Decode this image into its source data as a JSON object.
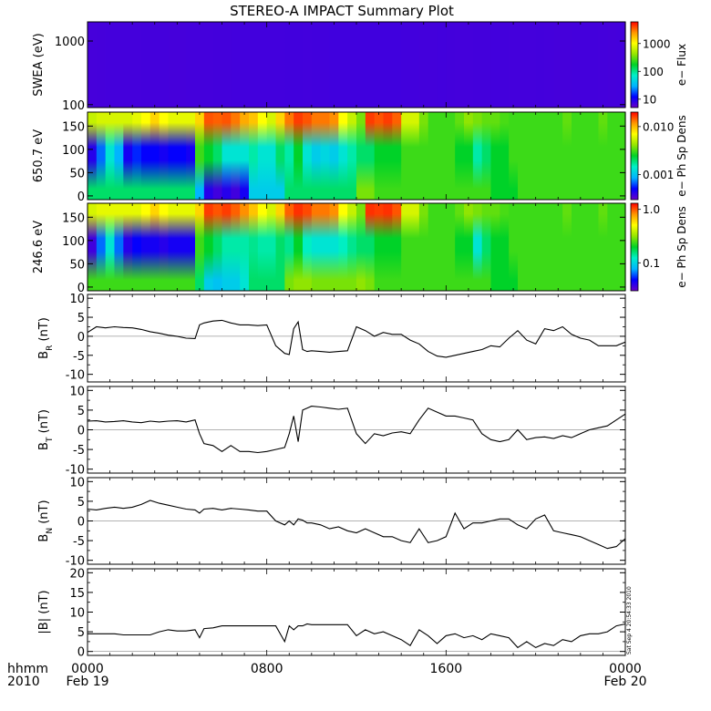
{
  "title": "STEREO-A IMPACT Summary Plot",
  "timestamp": "Sat Sep  4 20:54:33 2010",
  "time_axis": {
    "corner_top": "hhmm",
    "corner_bottom": "2010",
    "ticks": [
      {
        "hour": 0,
        "label": "0000",
        "date": "Feb 19"
      },
      {
        "hour": 8,
        "label": "0800",
        "date": ""
      },
      {
        "hour": 16,
        "label": "1600",
        "date": ""
      },
      {
        "hour": 24,
        "label": "0000",
        "date": "Feb 20"
      }
    ],
    "range_hours": [
      0,
      24
    ]
  },
  "colors": {
    "colormap": [
      "#6a00c8",
      "#0000ff",
      "#00b4ff",
      "#00f0c8",
      "#00d228",
      "#96e600",
      "#ffff00",
      "#ff9600",
      "#ff0000"
    ],
    "line": "#000000"
  },
  "chart_data": [
    {
      "type": "heatmap",
      "ylabel": "SWEA (eV)",
      "scale": "log",
      "ylim": [
        90,
        2000
      ],
      "yticks": [
        {
          "value": 100,
          "label": "100"
        },
        {
          "value": 1000,
          "label": "1000"
        }
      ],
      "colorbar": {
        "label": "e− Flux",
        "scale": "log",
        "range": [
          5,
          6000
        ],
        "ticks": [
          {
            "value": 10,
            "label": "10"
          },
          {
            "value": 100,
            "label": "100"
          },
          {
            "value": 1000,
            "label": "1000"
          }
        ]
      },
      "profile": [
        0.05,
        0.14,
        0.28,
        0.45,
        0.6,
        0.74,
        0.86,
        1.0
      ],
      "peak": [
        0.86,
        0.88,
        0.9,
        0.9,
        0.89,
        0.9,
        0.91,
        0.9,
        0.89,
        0.88,
        0.88,
        0.9,
        0.9,
        0.9,
        0.91,
        0.92,
        0.94,
        0.94,
        0.95,
        0.95,
        0.95,
        0.94,
        0.96,
        0.96,
        0.95,
        0.96,
        0.97,
        0.98,
        0.99,
        0.99,
        0.98,
        0.99,
        1.0,
        0.99,
        0.99,
        0.97,
        0.94,
        0.93,
        0.93,
        0.94,
        0.93,
        0.9,
        0.9,
        0.92,
        0.93,
        0.94,
        0.91,
        0.9,
        0.89,
        0.9,
        0.92,
        0.9,
        0.88,
        0.88,
        0.89,
        0.9,
        0.91,
        0.9,
        0.88,
        0.89
      ]
    },
    {
      "type": "heatmap",
      "ylabel": "650.7 eV",
      "ylim": [
        -8,
        180
      ],
      "yticks": [
        {
          "value": 0,
          "label": "0"
        },
        {
          "value": 50,
          "label": "50"
        },
        {
          "value": 100,
          "label": "100"
        },
        {
          "value": 150,
          "label": "150"
        }
      ],
      "colorbar": {
        "label": "e− Ph Sp Dens",
        "scale": "log",
        "range": [
          0.0003,
          0.02
        ],
        "ticks": [
          {
            "value": 0.001,
            "label": "0.001"
          },
          {
            "value": 0.01,
            "label": "0.010"
          }
        ]
      },
      "top": [
        0.68,
        0.7,
        0.7,
        0.7,
        0.7,
        0.72,
        0.75,
        0.8,
        0.75,
        0.72,
        0.72,
        0.72,
        0.8,
        0.93,
        0.92,
        0.93,
        0.9,
        0.85,
        0.82,
        0.75,
        0.7,
        0.8,
        0.9,
        0.95,
        0.93,
        0.9,
        0.9,
        0.88,
        0.75,
        0.68,
        0.6,
        0.95,
        0.93,
        0.95,
        0.92,
        0.7,
        0.7,
        0.6,
        0.55,
        0.55,
        0.55,
        0.58,
        0.62,
        0.6,
        0.58,
        0.58,
        0.56,
        0.55,
        0.55,
        0.55,
        0.55,
        0.55,
        0.55,
        0.58,
        0.55,
        0.55,
        0.55,
        0.58,
        0.55,
        0.55
      ],
      "middle": [
        0.08,
        0.2,
        0.35,
        0.25,
        0.1,
        0.15,
        0.12,
        0.12,
        0.1,
        0.12,
        0.12,
        0.1,
        0.55,
        0.5,
        0.45,
        0.35,
        0.35,
        0.35,
        0.4,
        0.35,
        0.35,
        0.45,
        0.4,
        0.5,
        0.35,
        0.3,
        0.32,
        0.3,
        0.35,
        0.4,
        0.45,
        0.45,
        0.5,
        0.5,
        0.5,
        0.55,
        0.55,
        0.55,
        0.55,
        0.55,
        0.55,
        0.5,
        0.5,
        0.4,
        0.45,
        0.5,
        0.5,
        0.55,
        0.55,
        0.55,
        0.55,
        0.55,
        0.55,
        0.55,
        0.55,
        0.55,
        0.55,
        0.55,
        0.55,
        0.55
      ],
      "bottom": [
        0.45,
        0.45,
        0.45,
        0.45,
        0.45,
        0.45,
        0.45,
        0.45,
        0.45,
        0.45,
        0.45,
        0.45,
        0.25,
        0.08,
        0.05,
        0.08,
        0.05,
        0.1,
        0.3,
        0.3,
        0.3,
        0.3,
        0.45,
        0.45,
        0.45,
        0.45,
        0.45,
        0.45,
        0.45,
        0.45,
        0.6,
        0.6,
        0.55,
        0.55,
        0.55,
        0.55,
        0.55,
        0.55,
        0.55,
        0.55,
        0.55,
        0.55,
        0.55,
        0.55,
        0.55,
        0.5,
        0.5,
        0.5,
        0.55,
        0.55,
        0.55,
        0.55,
        0.55,
        0.55,
        0.55,
        0.55,
        0.55,
        0.55,
        0.55,
        0.55
      ]
    },
    {
      "type": "heatmap",
      "ylabel": "246.6 eV",
      "ylim": [
        -8,
        180
      ],
      "yticks": [
        {
          "value": 0,
          "label": "0"
        },
        {
          "value": 50,
          "label": "50"
        },
        {
          "value": 100,
          "label": "100"
        },
        {
          "value": 150,
          "label": "150"
        }
      ],
      "colorbar": {
        "label": "e− Ph Sp Dens",
        "scale": "log",
        "range": [
          0.03,
          1.3
        ],
        "ticks": [
          {
            "value": 0.1,
            "label": "0.1"
          },
          {
            "value": 1.0,
            "label": "1.0"
          }
        ]
      },
      "top": [
        0.7,
        0.72,
        0.72,
        0.72,
        0.72,
        0.72,
        0.75,
        0.8,
        0.75,
        0.72,
        0.72,
        0.72,
        0.8,
        0.95,
        0.93,
        0.95,
        0.92,
        0.88,
        0.82,
        0.75,
        0.7,
        0.8,
        0.92,
        0.96,
        0.94,
        0.9,
        0.9,
        0.88,
        0.75,
        0.68,
        0.6,
        0.96,
        0.95,
        0.96,
        0.93,
        0.7,
        0.7,
        0.6,
        0.55,
        0.55,
        0.55,
        0.58,
        0.62,
        0.6,
        0.58,
        0.58,
        0.56,
        0.55,
        0.55,
        0.55,
        0.55,
        0.55,
        0.55,
        0.58,
        0.55,
        0.55,
        0.55,
        0.58,
        0.55,
        0.55
      ],
      "middle": [
        0.05,
        0.2,
        0.35,
        0.2,
        0.08,
        0.12,
        0.1,
        0.1,
        0.08,
        0.1,
        0.1,
        0.1,
        0.55,
        0.5,
        0.45,
        0.4,
        0.4,
        0.4,
        0.42,
        0.4,
        0.4,
        0.45,
        0.42,
        0.5,
        0.38,
        0.35,
        0.35,
        0.35,
        0.38,
        0.42,
        0.45,
        0.45,
        0.5,
        0.5,
        0.5,
        0.55,
        0.55,
        0.55,
        0.55,
        0.55,
        0.55,
        0.5,
        0.5,
        0.35,
        0.45,
        0.5,
        0.5,
        0.55,
        0.55,
        0.55,
        0.55,
        0.55,
        0.55,
        0.55,
        0.55,
        0.55,
        0.55,
        0.55,
        0.55,
        0.55
      ],
      "bottom": [
        0.55,
        0.55,
        0.55,
        0.55,
        0.55,
        0.55,
        0.55,
        0.55,
        0.55,
        0.55,
        0.55,
        0.55,
        0.45,
        0.3,
        0.28,
        0.3,
        0.3,
        0.35,
        0.45,
        0.45,
        0.45,
        0.45,
        0.6,
        0.62,
        0.62,
        0.6,
        0.6,
        0.6,
        0.6,
        0.6,
        0.62,
        0.6,
        0.55,
        0.55,
        0.55,
        0.55,
        0.55,
        0.55,
        0.55,
        0.55,
        0.55,
        0.55,
        0.55,
        0.55,
        0.55,
        0.5,
        0.5,
        0.5,
        0.55,
        0.55,
        0.55,
        0.55,
        0.55,
        0.55,
        0.55,
        0.55,
        0.55,
        0.55,
        0.55,
        0.55
      ]
    },
    {
      "type": "line",
      "ylabel_main": "B",
      "ylabel_sub": "R",
      "ylabel_unit": " (nT)",
      "ylim": [
        -12,
        11
      ],
      "yticks": [
        {
          "value": -10,
          "label": "-10"
        },
        {
          "value": -5,
          "label": "-5"
        },
        {
          "value": 0,
          "label": "0"
        },
        {
          "value": 5,
          "label": "5"
        },
        {
          "value": 10,
          "label": "10"
        }
      ],
      "x_hours": [
        0,
        0.4,
        0.8,
        1.2,
        1.6,
        2.0,
        2.4,
        2.8,
        3.2,
        3.6,
        4.0,
        4.4,
        4.8,
        5.0,
        5.2,
        5.6,
        6.0,
        6.4,
        6.8,
        7.2,
        7.6,
        8.0,
        8.4,
        8.8,
        9.0,
        9.2,
        9.4,
        9.6,
        9.8,
        10.0,
        10.4,
        10.8,
        11.2,
        11.6,
        12.0,
        12.4,
        12.8,
        13.2,
        13.6,
        14.0,
        14.4,
        14.8,
        15.2,
        15.6,
        16.0,
        16.4,
        16.8,
        17.2,
        17.6,
        18.0,
        18.4,
        18.8,
        19.2,
        19.6,
        20.0,
        20.4,
        20.8,
        21.2,
        21.6,
        22.0,
        22.4,
        22.8,
        23.2,
        23.6,
        24.0
      ],
      "y": [
        1,
        2.5,
        2.2,
        2.5,
        2.3,
        2.2,
        1.8,
        1.2,
        0.8,
        0.3,
        0,
        -0.5,
        -0.6,
        3,
        3.5,
        4,
        4.2,
        3.5,
        3,
        3,
        2.8,
        3,
        -2.5,
        -4.5,
        -4.8,
        2,
        3.8,
        -3.5,
        -4,
        -3.8,
        -4,
        -4.2,
        -4,
        -3.8,
        2.5,
        1.5,
        0,
        1,
        0.5,
        0.5,
        -1,
        -2,
        -4,
        -5.2,
        -5.5,
        -5,
        -4.5,
        -4,
        -3.5,
        -2.5,
        -2.8,
        -0.5,
        1.5,
        -1,
        -2,
        2,
        1.5,
        2.5,
        0.5,
        -0.5,
        -1,
        -2.5,
        -2.5,
        -2.5,
        -1.5
      ]
    },
    {
      "type": "line",
      "ylabel_main": "B",
      "ylabel_sub": "T",
      "ylabel_unit": " (nT)",
      "ylim": [
        -11,
        11
      ],
      "yticks": [
        {
          "value": -10,
          "label": "-10"
        },
        {
          "value": -5,
          "label": "-5"
        },
        {
          "value": 0,
          "label": "0"
        },
        {
          "value": 5,
          "label": "5"
        },
        {
          "value": 10,
          "label": "10"
        }
      ],
      "x_hours": [
        0,
        0.4,
        0.8,
        1.2,
        1.6,
        2.0,
        2.4,
        2.8,
        3.2,
        3.6,
        4.0,
        4.4,
        4.8,
        5.0,
        5.2,
        5.6,
        6.0,
        6.4,
        6.8,
        7.2,
        7.6,
        8.0,
        8.4,
        8.8,
        9.0,
        9.2,
        9.4,
        9.6,
        9.8,
        10.0,
        10.4,
        10.8,
        11.2,
        11.6,
        12.0,
        12.4,
        12.8,
        13.2,
        13.6,
        14.0,
        14.4,
        14.8,
        15.2,
        15.6,
        16.0,
        16.4,
        16.8,
        17.2,
        17.6,
        18.0,
        18.4,
        18.8,
        19.2,
        19.6,
        20.0,
        20.4,
        20.8,
        21.2,
        21.6,
        22.0,
        22.4,
        22.8,
        23.2,
        23.6,
        24.0
      ],
      "y": [
        2.2,
        2.3,
        2.0,
        2.1,
        2.3,
        2.0,
        1.8,
        2.2,
        2.0,
        2.2,
        2.3,
        2.0,
        2.5,
        -1,
        -3.5,
        -4,
        -5.5,
        -4,
        -5.5,
        -5.5,
        -5.8,
        -5.5,
        -5,
        -4.5,
        -1,
        3.5,
        -3,
        5,
        5.5,
        6,
        5.8,
        5.5,
        5.2,
        5.5,
        -1,
        -3.5,
        -1,
        -1.5,
        -0.8,
        -0.5,
        -1,
        2.5,
        5.5,
        4.5,
        3.5,
        3.5,
        3,
        2.5,
        -1,
        -2.5,
        -3,
        -2.5,
        0,
        -2.5,
        -2,
        -1.8,
        -2.2,
        -1.5,
        -2,
        -1,
        0,
        0.5,
        1,
        2.5,
        4
      ]
    },
    {
      "type": "line",
      "ylabel_main": "B",
      "ylabel_sub": "N",
      "ylabel_unit": " (nT)",
      "ylim": [
        -11,
        11
      ],
      "yticks": [
        {
          "value": -10,
          "label": "-10"
        },
        {
          "value": -5,
          "label": "-5"
        },
        {
          "value": 0,
          "label": "0"
        },
        {
          "value": 5,
          "label": "5"
        },
        {
          "value": 10,
          "label": "10"
        }
      ],
      "x_hours": [
        0,
        0.4,
        0.8,
        1.2,
        1.6,
        2.0,
        2.4,
        2.8,
        3.2,
        3.6,
        4.0,
        4.4,
        4.8,
        5.0,
        5.2,
        5.6,
        6.0,
        6.4,
        6.8,
        7.2,
        7.6,
        8.0,
        8.4,
        8.8,
        9.0,
        9.2,
        9.4,
        9.6,
        9.8,
        10.0,
        10.4,
        10.8,
        11.2,
        11.6,
        12.0,
        12.4,
        12.8,
        13.2,
        13.6,
        14.0,
        14.4,
        14.8,
        15.2,
        15.6,
        16.0,
        16.4,
        16.8,
        17.2,
        17.6,
        18.0,
        18.4,
        18.8,
        19.2,
        19.6,
        20.0,
        20.4,
        20.8,
        21.2,
        21.6,
        22.0,
        22.4,
        22.8,
        23.2,
        23.6,
        24.0
      ],
      "y": [
        3,
        2.8,
        3.2,
        3.5,
        3.2,
        3.5,
        4.2,
        5.2,
        4.5,
        4,
        3.5,
        3,
        2.8,
        2,
        3,
        3.2,
        2.8,
        3.2,
        3,
        2.8,
        2.5,
        2.5,
        0,
        -1,
        0,
        -1,
        0.5,
        0.2,
        -0.5,
        -0.5,
        -1,
        -2,
        -1.5,
        -2.5,
        -3,
        -2,
        -3,
        -4,
        -4,
        -5,
        -5.5,
        -2,
        -5.5,
        -5,
        -4,
        2,
        -2,
        -0.5,
        -0.5,
        0,
        0.5,
        0.5,
        -1,
        -2,
        0.5,
        1.5,
        -2.5,
        -3,
        -3.5,
        -4,
        -5,
        -6,
        -7,
        -6.5,
        -4.5
      ]
    },
    {
      "type": "line",
      "ylabel_main": "|B|",
      "ylabel_sub": "",
      "ylabel_unit": " (nT)",
      "ylim": [
        -1,
        21
      ],
      "yticks": [
        {
          "value": 0,
          "label": "0"
        },
        {
          "value": 5,
          "label": "5"
        },
        {
          "value": 10,
          "label": "10"
        },
        {
          "value": 15,
          "label": "15"
        },
        {
          "value": 20,
          "label": "20"
        }
      ],
      "x_hours": [
        0,
        0.4,
        0.8,
        1.2,
        1.6,
        2.0,
        2.4,
        2.8,
        3.2,
        3.6,
        4.0,
        4.4,
        4.8,
        5.0,
        5.2,
        5.6,
        6.0,
        6.4,
        6.8,
        7.2,
        7.6,
        8.0,
        8.4,
        8.8,
        9.0,
        9.2,
        9.4,
        9.6,
        9.8,
        10.0,
        10.4,
        10.8,
        11.2,
        11.6,
        12.0,
        12.4,
        12.8,
        13.2,
        13.6,
        14.0,
        14.4,
        14.8,
        15.2,
        15.6,
        16.0,
        16.4,
        16.8,
        17.2,
        17.6,
        18.0,
        18.4,
        18.8,
        19.2,
        19.6,
        20.0,
        20.4,
        20.8,
        21.2,
        21.6,
        22.0,
        22.4,
        22.8,
        23.2,
        23.6,
        24.0
      ],
      "y": [
        4.5,
        4.5,
        4.5,
        4.5,
        4.2,
        4.2,
        4.2,
        4.2,
        5,
        5.5,
        5.2,
        5.2,
        5.5,
        3.5,
        5.8,
        6,
        6.5,
        6.5,
        6.5,
        6.5,
        6.5,
        6.5,
        6.5,
        2.5,
        6.5,
        5.5,
        6.5,
        6.5,
        7,
        6.8,
        6.8,
        6.8,
        6.8,
        6.8,
        4,
        5.5,
        4.5,
        5,
        4,
        3,
        1.5,
        5.5,
        4,
        2,
        4,
        4.5,
        3.5,
        4,
        3,
        4.5,
        4,
        3.5,
        1,
        2.5,
        1,
        2,
        1.5,
        3,
        2.5,
        4,
        4.5,
        4.5,
        5,
        6.5,
        7
      ]
    }
  ]
}
